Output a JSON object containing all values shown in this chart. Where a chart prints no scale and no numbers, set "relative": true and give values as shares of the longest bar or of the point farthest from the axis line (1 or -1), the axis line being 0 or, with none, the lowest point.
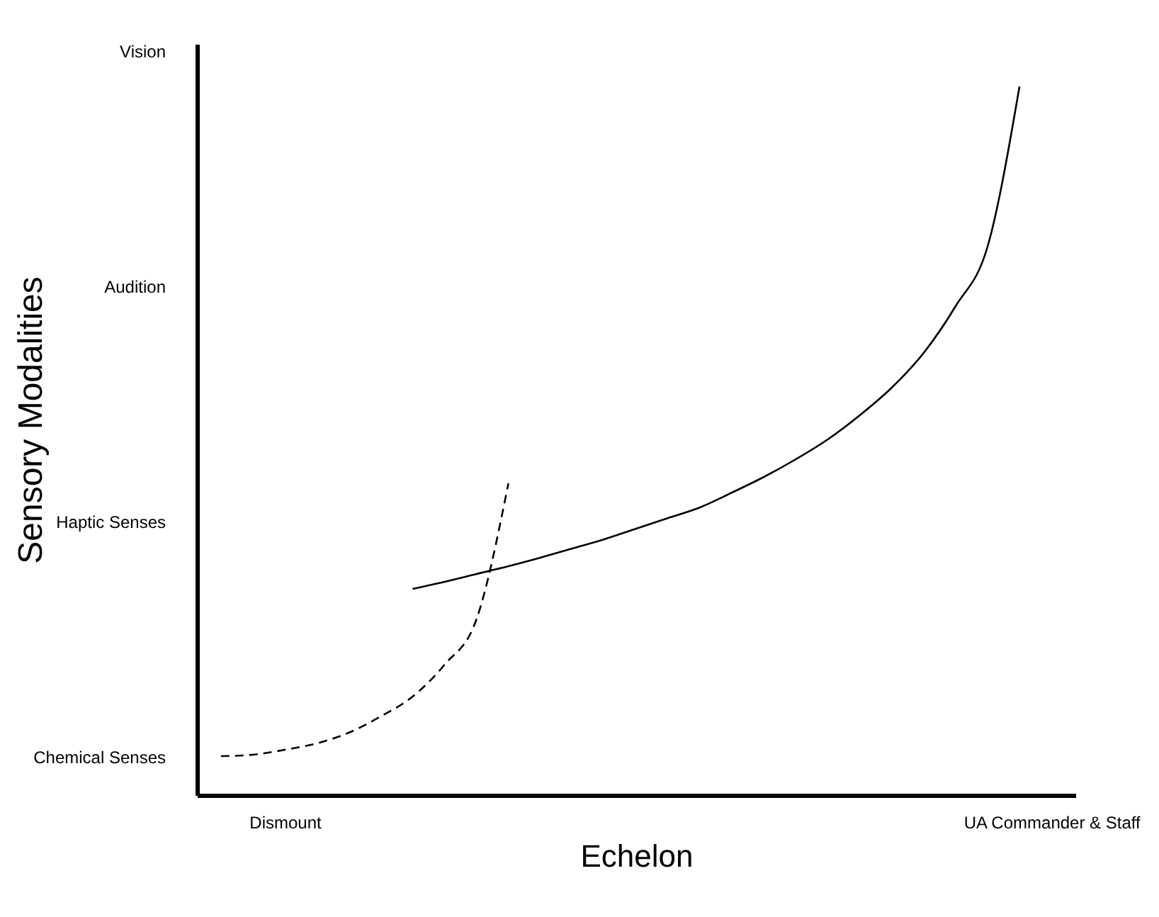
{
  "chart_data": {
    "type": "line",
    "xlabel": "Echelon",
    "ylabel": "Sensory Modalities",
    "relative": true,
    "categories": [
      null,
      null,
      "Dismount",
      null,
      null,
      null,
      null,
      null,
      null,
      null,
      null,
      null,
      null,
      null,
      null,
      null,
      null,
      null,
      null,
      null,
      null,
      null,
      null,
      null,
      null,
      null,
      "UA Commander & Staff"
    ],
    "annotations": [
      "Vision",
      "Audition",
      "Haptic Senses",
      "Chemical Senses"
    ],
    "series": [
      {
        "color": "#000000",
        "line_style": "dashed",
        "values": [
          0.055,
          0.057,
          0.064,
          0.073,
          0.088,
          0.111,
          0.139,
          0.184,
          0.248,
          0.44,
          null,
          null,
          null,
          null,
          null,
          null,
          null,
          null,
          null,
          null,
          null,
          null,
          null,
          null,
          null,
          null,
          null
        ]
      },
      {
        "color": "#000000",
        "line_style": "solid",
        "values": [
          null,
          null,
          null,
          null,
          null,
          null,
          0.291,
          0.301,
          0.312,
          0.323,
          0.335,
          0.348,
          0.361,
          0.376,
          0.391,
          0.406,
          0.427,
          0.449,
          0.474,
          0.502,
          0.536,
          0.575,
          0.624,
          0.69,
          0.774,
          1,
          null
        ]
      }
    ]
  }
}
